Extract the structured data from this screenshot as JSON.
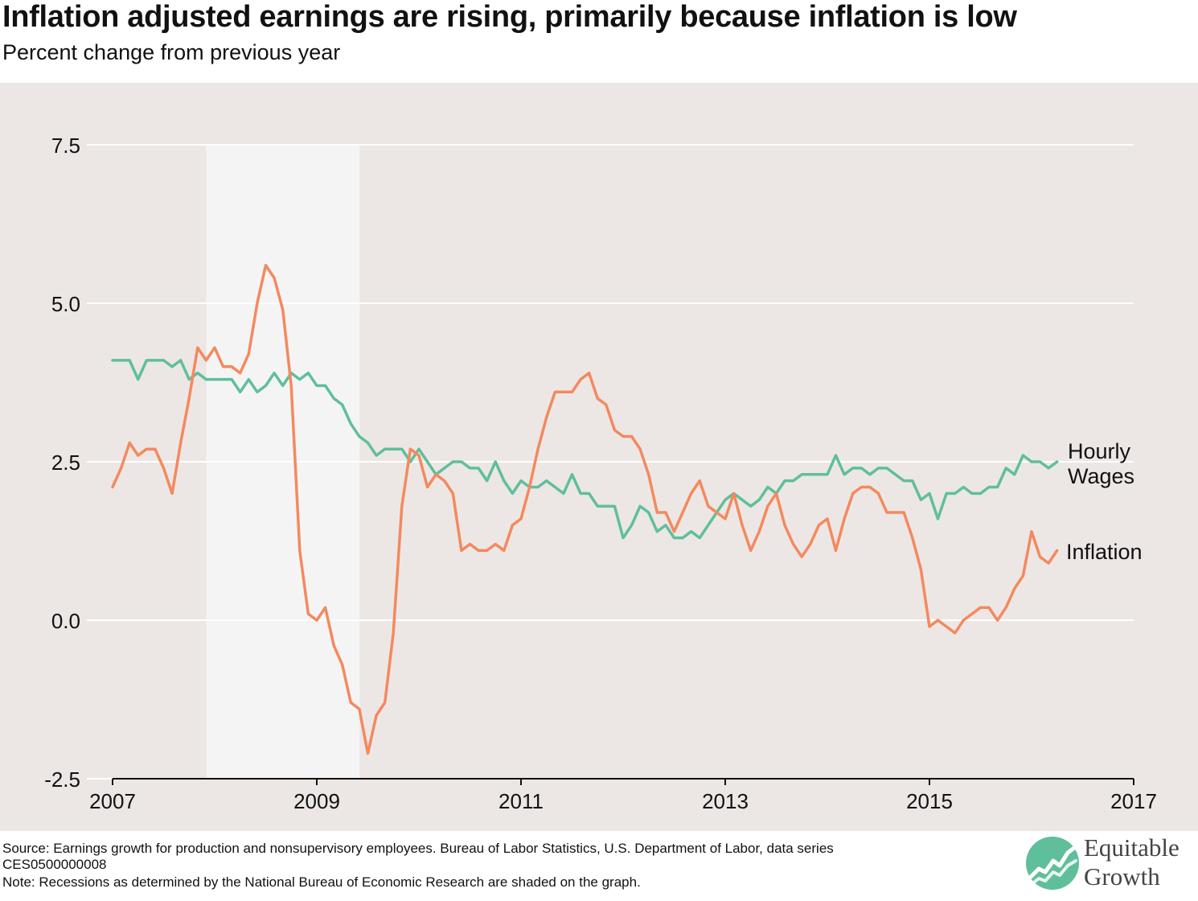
{
  "title": "Inflation adjusted earnings are rising, primarily because inflation is low",
  "subtitle": "Percent change from previous year",
  "footnotes": [
    "Source: Earnings growth for production and nonsupervisory employees. Bureau of Labor Statistics, U.S. Department of Labor, data series",
    "CES0500000008",
    "Note: Recessions as determined by the National Bureau of Economic Research are shaded on the graph."
  ],
  "logo": {
    "line1": "Equitable",
    "line2": "Growth",
    "icon": "rising-chart-circle-icon",
    "color": "#5fbf9b"
  },
  "chart_data": {
    "type": "line",
    "xlim": [
      2007,
      2017
    ],
    "ylim": [
      -2.5,
      7.5
    ],
    "x_ticks": [
      "2007",
      "2009",
      "2011",
      "2013",
      "2015",
      "2017"
    ],
    "y_ticks": [
      "7.5",
      "5.0",
      "2.5",
      "0.0",
      "-2.5"
    ],
    "grid": true,
    "recession_shading": [
      2007.92,
      2009.42
    ],
    "x_start": 2007,
    "x_step": 0.08333,
    "series": [
      {
        "name": "Hourly Wages",
        "label_lines": [
          "Hourly",
          "Wages"
        ],
        "color": "#5fbf9b",
        "values": [
          4.1,
          4.1,
          4.1,
          3.8,
          4.1,
          4.1,
          4.1,
          4.0,
          4.1,
          3.8,
          3.9,
          3.8,
          3.8,
          3.8,
          3.8,
          3.6,
          3.8,
          3.6,
          3.7,
          3.9,
          3.7,
          3.9,
          3.8,
          3.9,
          3.7,
          3.7,
          3.5,
          3.4,
          3.1,
          2.9,
          2.8,
          2.6,
          2.7,
          2.7,
          2.7,
          2.5,
          2.7,
          2.5,
          2.3,
          2.4,
          2.5,
          2.5,
          2.4,
          2.4,
          2.2,
          2.5,
          2.2,
          2.0,
          2.2,
          2.1,
          2.1,
          2.2,
          2.1,
          2.0,
          2.3,
          2.0,
          2.0,
          1.8,
          1.8,
          1.8,
          1.3,
          1.5,
          1.8,
          1.7,
          1.4,
          1.5,
          1.3,
          1.3,
          1.4,
          1.3,
          1.5,
          1.7,
          1.9,
          2.0,
          1.9,
          1.8,
          1.9,
          2.1,
          2.0,
          2.2,
          2.2,
          2.3,
          2.3,
          2.3,
          2.3,
          2.6,
          2.3,
          2.4,
          2.4,
          2.3,
          2.4,
          2.4,
          2.3,
          2.2,
          2.2,
          1.9,
          2.0,
          1.6,
          2.0,
          2.0,
          2.1,
          2.0,
          2.0,
          2.1,
          2.1,
          2.4,
          2.3,
          2.6,
          2.5,
          2.5,
          2.4,
          2.5
        ]
      },
      {
        "name": "Inflation",
        "label_lines": [
          "Inflation"
        ],
        "color": "#f4895f",
        "values": [
          2.1,
          2.4,
          2.8,
          2.6,
          2.7,
          2.7,
          2.4,
          2.0,
          2.8,
          3.5,
          4.3,
          4.1,
          4.3,
          4.0,
          4.0,
          3.9,
          4.2,
          5.0,
          5.6,
          5.4,
          4.9,
          3.7,
          1.1,
          0.1,
          0.0,
          0.2,
          -0.4,
          -0.7,
          -1.3,
          -1.4,
          -2.1,
          -1.5,
          -1.3,
          -0.2,
          1.8,
          2.7,
          2.6,
          2.1,
          2.3,
          2.2,
          2.0,
          1.1,
          1.2,
          1.1,
          1.1,
          1.2,
          1.1,
          1.5,
          1.6,
          2.1,
          2.7,
          3.2,
          3.6,
          3.6,
          3.6,
          3.8,
          3.9,
          3.5,
          3.4,
          3.0,
          2.9,
          2.9,
          2.7,
          2.3,
          1.7,
          1.7,
          1.4,
          1.7,
          2.0,
          2.2,
          1.8,
          1.7,
          1.6,
          2.0,
          1.5,
          1.1,
          1.4,
          1.8,
          2.0,
          1.5,
          1.2,
          1.0,
          1.2,
          1.5,
          1.6,
          1.1,
          1.6,
          2.0,
          2.1,
          2.1,
          2.0,
          1.7,
          1.7,
          1.7,
          1.3,
          0.8,
          -0.1,
          0.0,
          -0.1,
          -0.2,
          0.0,
          0.1,
          0.2,
          0.2,
          0.0,
          0.2,
          0.5,
          0.7,
          1.4,
          1.0,
          0.9,
          1.1
        ]
      }
    ]
  }
}
